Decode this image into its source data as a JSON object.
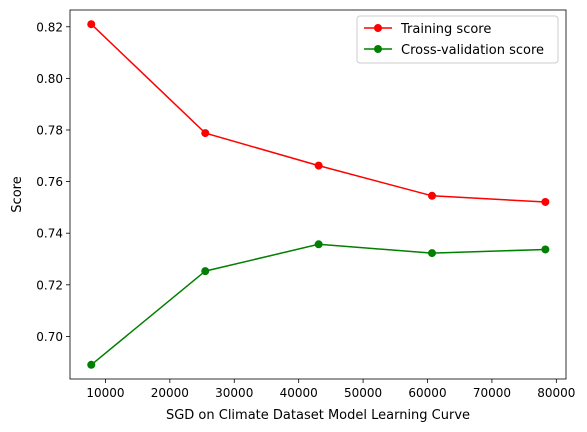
{
  "chart_data": {
    "type": "line",
    "xlabel": "SGD on Climate Dataset Model Learning Curve",
    "ylabel": "Score",
    "xlim": [
      4500,
      81500
    ],
    "ylim": [
      0.6835,
      0.8265
    ],
    "x_ticks": [
      10000,
      20000,
      30000,
      40000,
      50000,
      60000,
      70000,
      80000
    ],
    "y_ticks": [
      0.7,
      0.72,
      0.74,
      0.76,
      0.78,
      0.8,
      0.82
    ],
    "x": [
      7800,
      25500,
      43100,
      60700,
      78300
    ],
    "series": [
      {
        "name": "Training score",
        "color": "#ff0000",
        "marker": "circle",
        "values": [
          0.821,
          0.7788,
          0.7662,
          0.7545,
          0.7521
        ]
      },
      {
        "name": "Cross-validation score",
        "color": "#008000",
        "marker": "circle",
        "values": [
          0.689,
          0.7253,
          0.7357,
          0.7323,
          0.7337
        ]
      }
    ],
    "legend": {
      "placement": "top-right"
    },
    "grid": false
  }
}
